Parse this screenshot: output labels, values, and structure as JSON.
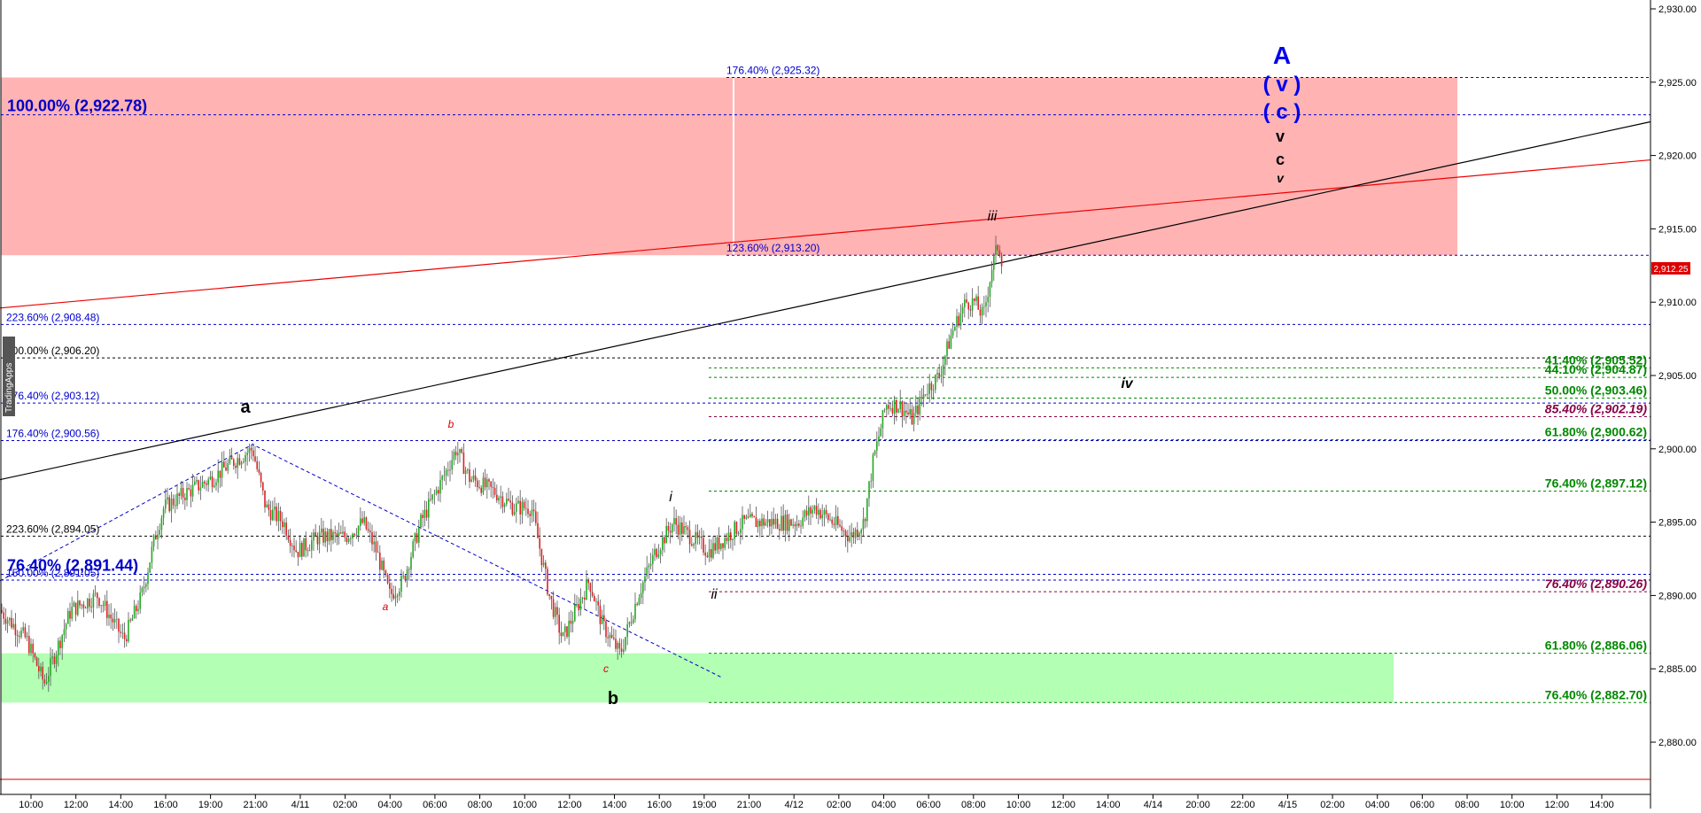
{
  "chart_data": {
    "type": "candlestick",
    "watermark": "TradingApps",
    "ylim": [
      2876,
      2931
    ],
    "y_ticks": [
      "2,930.00",
      "2,925.00",
      "2,920.00",
      "2,915.00",
      "2,910.00",
      "2,905.00",
      "2,900.00",
      "2,895.00",
      "2,890.00",
      "2,885.00",
      "2,880.00"
    ],
    "y_tick_values": [
      2930,
      2925,
      2920,
      2915,
      2910,
      2905,
      2900,
      2895,
      2890,
      2885,
      2880
    ],
    "x_ticks": [
      "10:00",
      "12:00",
      "14:00",
      "16:00",
      "19:00",
      "21:00",
      "4/11",
      "02:00",
      "04:00",
      "06:00",
      "08:00",
      "10:00",
      "12:00",
      "14:00",
      "16:00",
      "19:00",
      "21:00",
      "4/12",
      "02:00",
      "04:00",
      "06:00",
      "08:00",
      "10:00",
      "12:00",
      "14:00",
      "4/14",
      "20:00",
      "22:00",
      "4/15",
      "02:00",
      "04:00",
      "06:00",
      "08:00",
      "10:00",
      "12:00",
      "14:00"
    ],
    "last_price": "2,912.25",
    "target_zone": {
      "top": 2925.32,
      "bottom": 2913.2,
      "color": "#ffb3b3"
    },
    "support_zone": {
      "top": 2886.06,
      "bottom": 2882.7,
      "color": "#b3ffb3"
    },
    "fib_levels": [
      {
        "value": 2925.32,
        "text": "176.40% (2,925.32)",
        "color": "#0000cc",
        "side": "mid"
      },
      {
        "value": 2922.78,
        "text": "100.00% (2,922.78)",
        "color": "#0000cc",
        "side": "left-big"
      },
      {
        "value": 2913.2,
        "text": "123.60% (2,913.20)",
        "color": "#0000cc",
        "side": "mid"
      },
      {
        "value": 2908.48,
        "text": "223.60% (2,908.48)",
        "color": "#0000cc",
        "side": "left"
      },
      {
        "value": 2906.2,
        "text": "100.00% (2,906.20)",
        "color": "#000000",
        "side": "left"
      },
      {
        "value": 2903.12,
        "text": "176.40% (2,903.12)",
        "color": "#0000cc",
        "side": "left"
      },
      {
        "value": 2900.56,
        "text": "176.40% (2,900.56)",
        "color": "#0000cc",
        "side": "left"
      },
      {
        "value": 2894.05,
        "text": "223.60% (2,894.05)",
        "color": "#000000",
        "side": "left"
      },
      {
        "value": 2891.44,
        "text": "76.40% (2,891.44)",
        "color": "#0000cc",
        "side": "left-big"
      },
      {
        "value": 2891.05,
        "text": "150.00% (2,891.05)",
        "color": "#0000cc",
        "side": "left"
      },
      {
        "value": 2905.52,
        "text": "41.40% (2,905.52)",
        "color": "#008800",
        "side": "right"
      },
      {
        "value": 2904.87,
        "text": "44.10% (2,904.87)",
        "color": "#008800",
        "side": "right"
      },
      {
        "value": 2903.46,
        "text": "50.00% (2,903.46)",
        "color": "#008800",
        "side": "right"
      },
      {
        "value": 2902.19,
        "text": "85.40% (2,902.19)",
        "color": "#880044",
        "side": "right-italic"
      },
      {
        "value": 2900.62,
        "text": "61.80% (2,900.62)",
        "color": "#008800",
        "side": "right"
      },
      {
        "value": 2897.12,
        "text": "76.40% (2,897.12)",
        "color": "#008800",
        "side": "right"
      },
      {
        "value": 2890.26,
        "text": "76.40% (2,890.26)",
        "color": "#880044",
        "side": "right-italic"
      },
      {
        "value": 2886.06,
        "text": "61.80% (2,886.06)",
        "color": "#008800",
        "side": "right"
      },
      {
        "value": 2882.7,
        "text": "76.40% (2,882.70)",
        "color": "#008800",
        "side": "right"
      }
    ],
    "wave_labels": [
      {
        "text": "A",
        "color": "#0000ee"
      },
      {
        "text": "( v )",
        "color": "#0000ee"
      },
      {
        "text": "( c )",
        "color": "#0000ee"
      },
      {
        "text": "v",
        "color": "#000000"
      },
      {
        "text": "c",
        "color": "#000000"
      },
      {
        "text": "v",
        "color": "#000000"
      },
      {
        "text": "iii",
        "color": "#000000"
      },
      {
        "text": "iv",
        "color": "#000000"
      },
      {
        "text": "i",
        "color": "#000000"
      },
      {
        "text": "ii",
        "color": "#000000"
      },
      {
        "text": "a",
        "color": "#000000"
      },
      {
        "text": "b",
        "color": "#000000"
      },
      {
        "text": "a",
        "color": "#dd0000"
      },
      {
        "text": "b",
        "color": "#dd0000"
      },
      {
        "text": "c",
        "color": "#dd0000"
      }
    ]
  }
}
